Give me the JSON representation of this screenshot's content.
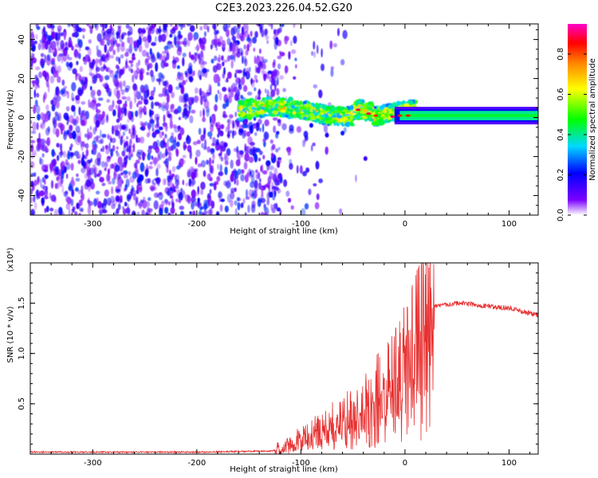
{
  "title": "C2E3.2023.226.04.52.G20",
  "chart_data": [
    {
      "type": "heatmap",
      "xlabel": "Height of straight line (km)",
      "ylabel": "Frequency (Hz)",
      "xlim": [
        -360,
        128
      ],
      "ylim": [
        -50,
        48
      ],
      "xticks": [
        -300,
        -200,
        -100,
        0,
        100
      ],
      "xtick_labels": [
        "-300",
        "-200",
        "-100",
        "0",
        "100"
      ],
      "yticks": [
        -40,
        -20,
        0,
        20,
        40
      ],
      "ytick_labels": [
        "-40",
        "-20",
        "0",
        "20",
        "40"
      ],
      "grid": false,
      "description_regions": [
        {
          "name": "noise",
          "x_range": [
            -360,
            -125
          ],
          "freq_range": [
            -50,
            48
          ],
          "amplitude_range": [
            0.05,
            0.25
          ]
        },
        {
          "name": "signal-turbulent",
          "x_range": [
            -160,
            0
          ],
          "freq_center": 2,
          "amplitude_range": [
            0.2,
            0.9
          ]
        },
        {
          "name": "signal-stable",
          "x_range": [
            0,
            128
          ],
          "freq_center": 1,
          "amplitude": 0.4
        }
      ],
      "colorbar": {
        "label": "Normalized spectral amplitude",
        "range": [
          0,
          0.95
        ],
        "ticks": [
          0.0,
          0.2,
          0.4,
          0.6,
          0.8
        ],
        "tick_labels": [
          "0.0",
          "0.2",
          "0.4",
          "0.6",
          "0.8"
        ],
        "colormap": [
          "#ffffff",
          "#7a00ff",
          "#0000ff",
          "#00d8ff",
          "#00ff00",
          "#ffff00",
          "#ff8000",
          "#ff0000",
          "#ff00c8"
        ]
      }
    },
    {
      "type": "line",
      "xlabel": "Height of straight line (km)",
      "ylabel": "SNR (10 * v/v)",
      "scale_label": "(x10⁴)",
      "xlim": [
        -360,
        128
      ],
      "ylim": [
        0,
        1.9
      ],
      "xticks": [
        -300,
        -200,
        -100,
        0,
        100
      ],
      "xtick_labels": [
        "-300",
        "-200",
        "-100",
        "0",
        "100"
      ],
      "yticks": [
        0.5,
        1.0,
        1.5
      ],
      "ytick_labels": [
        "0.5",
        "1.0",
        "1.5"
      ],
      "grid": false,
      "series": [
        {
          "name": "SNR",
          "color": "#e83030",
          "x": [
            -360,
            -300,
            -200,
            -130,
            -115,
            -100,
            -80,
            -60,
            -40,
            -30,
            -20,
            -10,
            0,
            10,
            15,
            20,
            30,
            50,
            70,
            100,
            128
          ],
          "y": [
            0.02,
            0.02,
            0.02,
            0.03,
            0.06,
            0.15,
            0.25,
            0.35,
            0.45,
            0.6,
            0.65,
            0.8,
            0.95,
            1.1,
            1.3,
            1.42,
            1.47,
            1.5,
            1.48,
            1.45,
            1.38
          ]
        }
      ],
      "annotations": {
        "peak": {
          "x": 16,
          "y": 1.9
        }
      }
    }
  ]
}
